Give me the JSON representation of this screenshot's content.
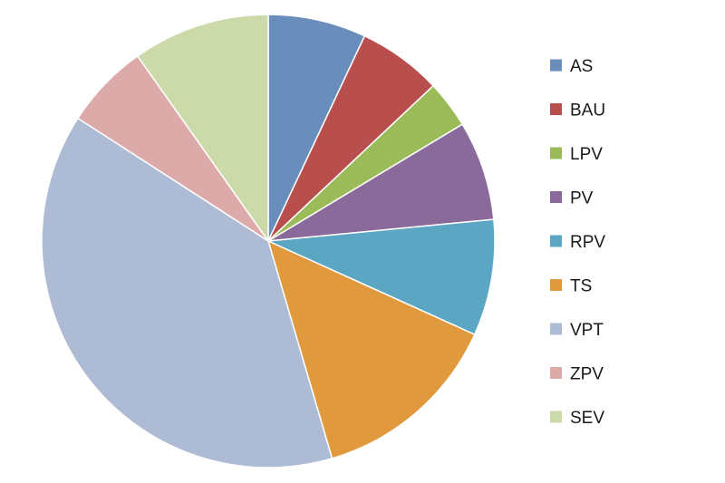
{
  "chart_data": {
    "type": "pie",
    "title": "",
    "legend_position": "right",
    "start_angle_deg": 0,
    "direction": "clockwise",
    "slices": [
      {
        "label": "AS",
        "value": 7.0,
        "color": "#6a8ebb"
      },
      {
        "label": "BAU",
        "value": 6.0,
        "color": "#b84f4d"
      },
      {
        "label": "LPV",
        "value": 3.4,
        "color": "#9bbb59"
      },
      {
        "label": "PV",
        "value": 7.1,
        "color": "#8a6a9a"
      },
      {
        "label": "RPV",
        "value": 8.3,
        "color": "#5ba6c2"
      },
      {
        "label": "TS",
        "value": 13.7,
        "color": "#e0993c"
      },
      {
        "label": "VPT",
        "value": 38.7,
        "color": "#aebbd4"
      },
      {
        "label": "ZPV",
        "value": 6.1,
        "color": "#ddaaaa"
      },
      {
        "label": "SEV",
        "value": 9.8,
        "color": "#ccdaaa"
      }
    ]
  }
}
